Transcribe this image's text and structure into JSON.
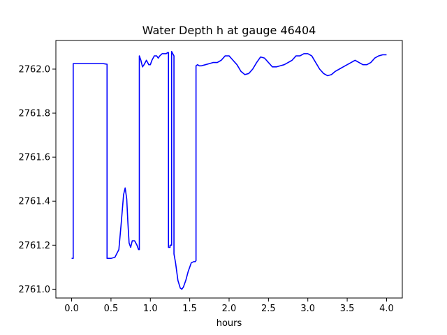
{
  "chart_data": {
    "type": "line",
    "title": "Water Depth h at gauge 46404",
    "xlabel": "hours",
    "ylabel": "",
    "xlim": [
      -0.2,
      4.2
    ],
    "ylim": [
      2760.96,
      2762.13
    ],
    "x_ticks": [
      0.0,
      0.5,
      1.0,
      1.5,
      2.0,
      2.5,
      3.0,
      3.5,
      4.0
    ],
    "x_tick_labels": [
      "0.0",
      "0.5",
      "1.0",
      "1.5",
      "2.0",
      "2.5",
      "3.0",
      "3.5",
      "4.0"
    ],
    "y_ticks": [
      2761.0,
      2761.2,
      2761.4,
      2761.6,
      2761.8,
      2762.0
    ],
    "y_tick_labels": [
      "2761.0",
      "2761.2",
      "2761.4",
      "2761.6",
      "2761.8",
      "2762.0"
    ],
    "grid": false,
    "legend": "none",
    "series": [
      {
        "color": "#0000ff",
        "x": [
          0.0,
          0.02,
          0.02,
          0.1,
          0.2,
          0.3,
          0.4,
          0.45,
          0.45,
          0.5,
          0.55,
          0.6,
          0.63,
          0.66,
          0.68,
          0.7,
          0.715,
          0.73,
          0.75,
          0.77,
          0.8,
          0.83,
          0.85,
          0.86,
          0.86,
          0.88,
          0.9,
          0.92,
          0.95,
          0.98,
          1.0,
          1.02,
          1.05,
          1.08,
          1.1,
          1.12,
          1.15,
          1.18,
          1.2,
          1.22,
          1.23,
          1.23,
          1.25,
          1.25,
          1.27,
          1.27,
          1.3,
          1.3,
          1.32,
          1.35,
          1.38,
          1.4,
          1.42,
          1.45,
          1.48,
          1.5,
          1.52,
          1.55,
          1.57,
          1.58,
          1.58,
          1.6,
          1.62,
          1.65,
          1.7,
          1.75,
          1.8,
          1.85,
          1.9,
          1.95,
          2.0,
          2.05,
          2.1,
          2.15,
          2.2,
          2.25,
          2.3,
          2.35,
          2.4,
          2.45,
          2.5,
          2.55,
          2.6,
          2.65,
          2.7,
          2.75,
          2.8,
          2.85,
          2.9,
          2.95,
          3.0,
          3.05,
          3.1,
          3.15,
          3.2,
          3.25,
          3.3,
          3.35,
          3.4,
          3.45,
          3.5,
          3.55,
          3.6,
          3.65,
          3.7,
          3.75,
          3.8,
          3.85,
          3.9,
          3.95,
          4.0
        ],
        "values": [
          2761.14,
          2761.14,
          2762.025,
          2762.025,
          2762.025,
          2762.025,
          2762.025,
          2762.022,
          2761.14,
          2761.14,
          2761.145,
          2761.18,
          2761.3,
          2761.43,
          2761.46,
          2761.41,
          2761.3,
          2761.21,
          2761.19,
          2761.22,
          2761.22,
          2761.2,
          2761.18,
          2761.18,
          2762.06,
          2762.04,
          2762.01,
          2762.02,
          2762.04,
          2762.02,
          2762.02,
          2762.04,
          2762.06,
          2762.06,
          2762.05,
          2762.06,
          2762.07,
          2762.07,
          2762.07,
          2762.075,
          2762.075,
          2761.19,
          2761.19,
          2761.2,
          2761.2,
          2762.08,
          2762.06,
          2761.16,
          2761.12,
          2761.04,
          2761.005,
          2761.0,
          2761.01,
          2761.04,
          2761.08,
          2761.1,
          2761.12,
          2761.125,
          2761.125,
          2761.13,
          2762.015,
          2762.02,
          2762.015,
          2762.015,
          2762.02,
          2762.025,
          2762.03,
          2762.03,
          2762.04,
          2762.06,
          2762.06,
          2762.04,
          2762.02,
          2761.99,
          2761.975,
          2761.98,
          2762.0,
          2762.03,
          2762.055,
          2762.05,
          2762.03,
          2762.01,
          2762.01,
          2762.015,
          2762.02,
          2762.03,
          2762.04,
          2762.06,
          2762.06,
          2762.07,
          2762.07,
          2762.06,
          2762.03,
          2762.0,
          2761.98,
          2761.97,
          2761.975,
          2761.99,
          2762.0,
          2762.01,
          2762.02,
          2762.03,
          2762.04,
          2762.03,
          2762.02,
          2762.02,
          2762.03,
          2762.05,
          2762.06,
          2762.065,
          2762.065
        ]
      }
    ]
  }
}
